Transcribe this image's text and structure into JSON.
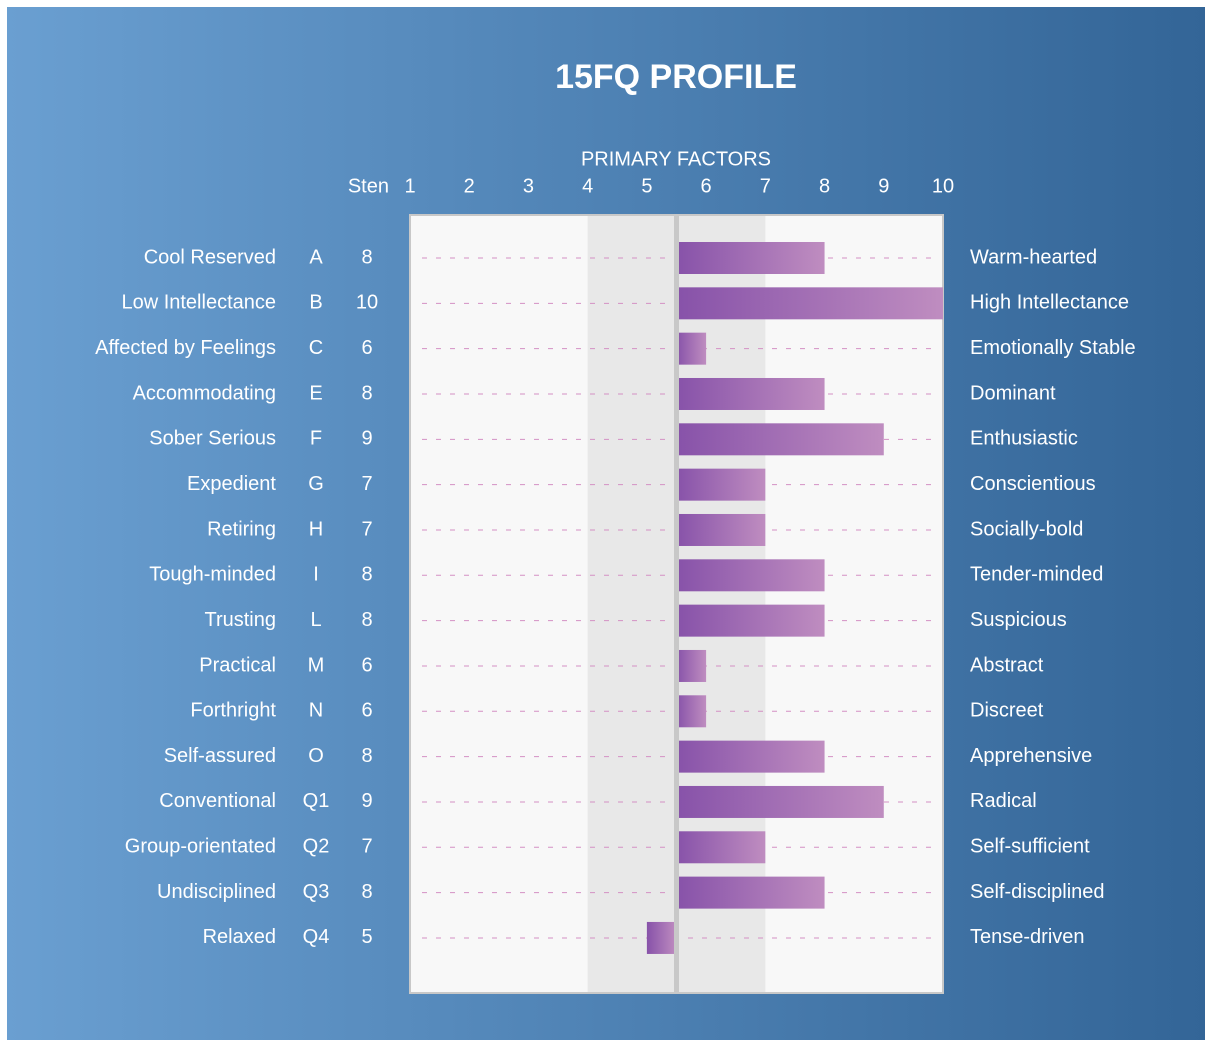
{
  "chart_data": {
    "type": "bar",
    "title": "15FQ PROFILE",
    "subtitle": "PRIMARY FACTORS",
    "sten_label": "Sten",
    "categories": [
      "Cool Reserved",
      "Low Intellectance",
      "Affected by Feelings",
      "Accommodating",
      "Sober Serious",
      "Expedient",
      "Retiring",
      "Tough-minded",
      "Trusting",
      "Practical",
      "Forthright",
      "Self-assured",
      "Conventional",
      "Group-orientated",
      "Undisciplined",
      "Relaxed"
    ],
    "factors": [
      "A",
      "B",
      "C",
      "E",
      "F",
      "G",
      "H",
      "I",
      "L",
      "M",
      "N",
      "O",
      "Q1",
      "Q2",
      "Q3",
      "Q4"
    ],
    "right_labels": [
      "Warm-hearted",
      "High Intellectance",
      "Emotionally Stable",
      "Dominant",
      "Enthusiastic",
      "Conscientious",
      "Socially-bold",
      "Tender-minded",
      "Suspicious",
      "Abstract",
      "Discreet",
      "Apprehensive",
      "Radical",
      "Self-sufficient",
      "Self-disciplined",
      "Tense-driven"
    ],
    "values": [
      8,
      10,
      6,
      8,
      9,
      7,
      7,
      8,
      8,
      6,
      6,
      8,
      9,
      7,
      8,
      5
    ],
    "xlim": [
      1,
      10
    ],
    "xticks": [
      1,
      2,
      3,
      4,
      5,
      6,
      7,
      8,
      9,
      10
    ],
    "shaded_range": [
      4,
      7
    ],
    "colors": [
      "#8752a9",
      "#bf8dc0"
    ]
  }
}
